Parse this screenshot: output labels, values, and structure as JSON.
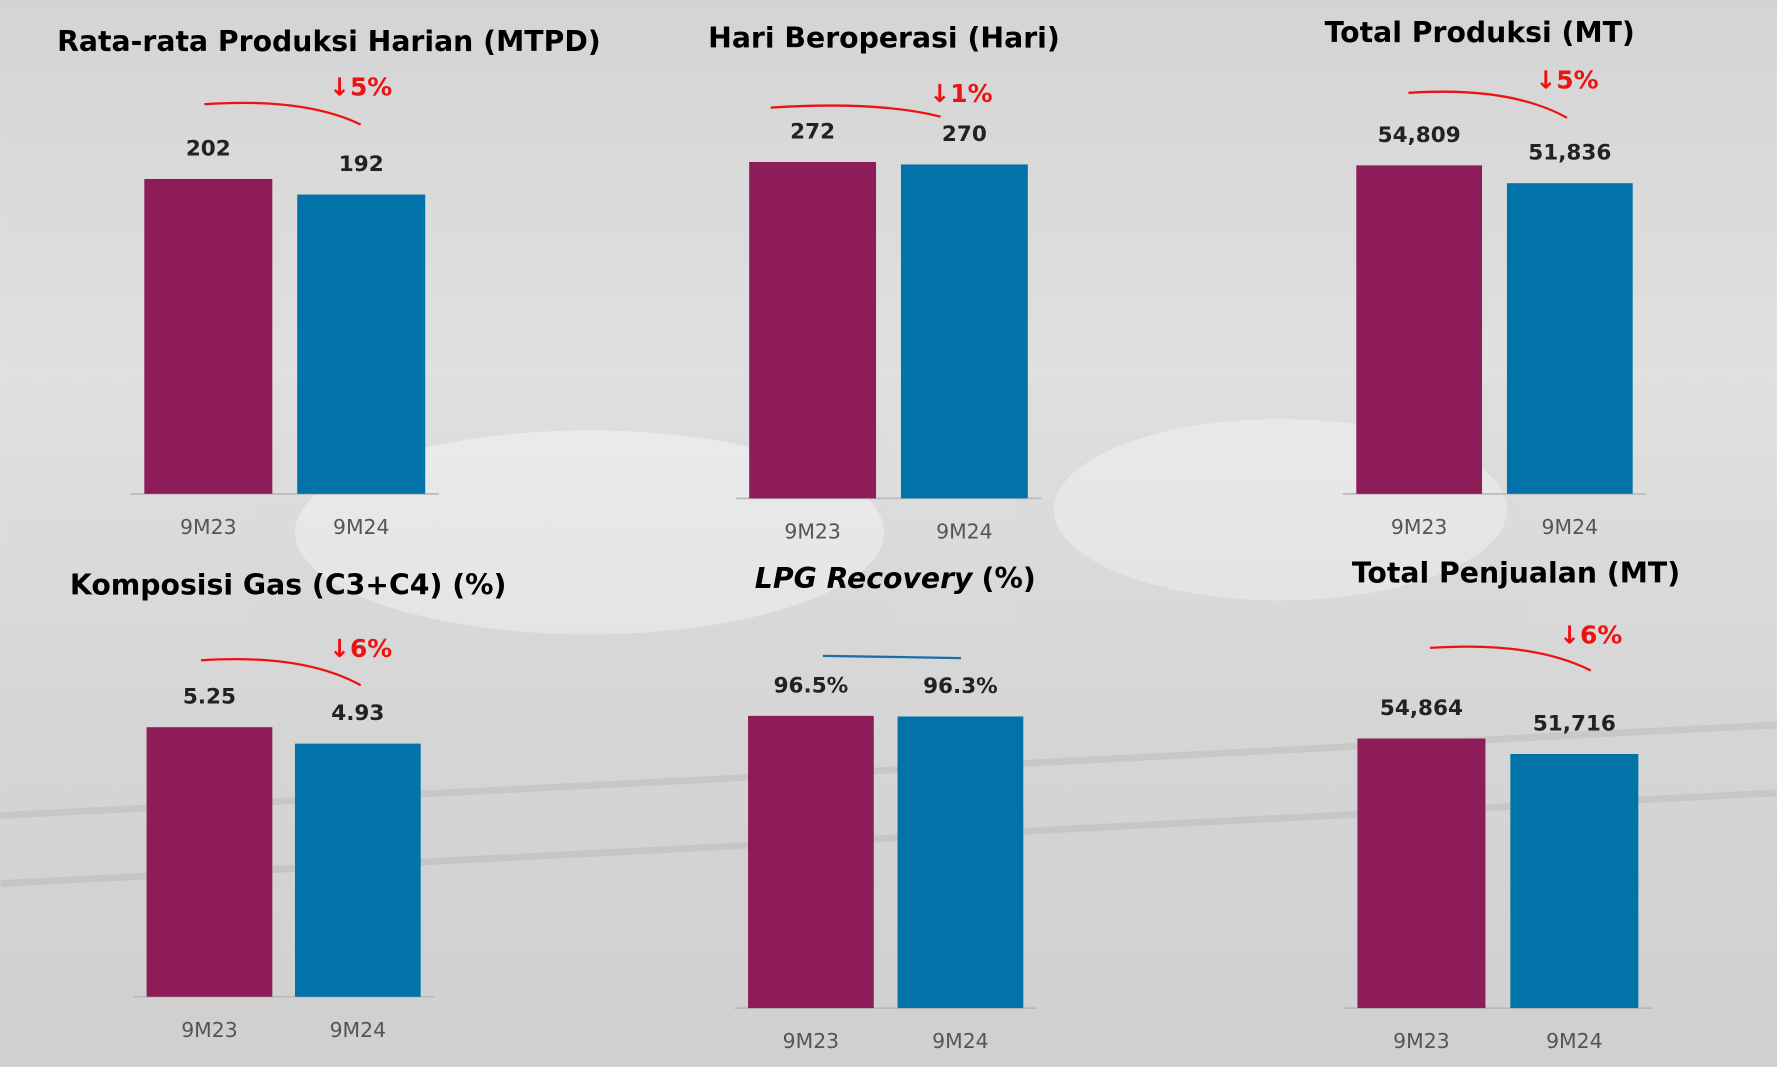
{
  "chart_data": [
    {
      "type": "bar",
      "title": "Rata-rata Produksi Harian (MTPD)",
      "categories": [
        "9M23",
        "9M24"
      ],
      "values": [
        202,
        192
      ],
      "colors": [
        "#8e1c59",
        "#0173a8"
      ],
      "change": "↓5%",
      "change_color": "#ee1111"
    },
    {
      "type": "bar",
      "title": "Hari Beroperasi (Hari)",
      "categories": [
        "9M23",
        "9M24"
      ],
      "values": [
        272,
        270
      ],
      "colors": [
        "#8e1c59",
        "#0173a8"
      ],
      "change": "↓1%",
      "change_color": "#ee1111"
    },
    {
      "type": "bar",
      "title": "Total Produksi (MT)",
      "categories": [
        "9M23",
        "9M24"
      ],
      "values": [
        54809,
        51836
      ],
      "value_labels": [
        "54,809",
        "51,836"
      ],
      "colors": [
        "#8e1c59",
        "#0173a8"
      ],
      "change": "↓5%",
      "change_color": "#ee1111"
    },
    {
      "type": "bar",
      "title": "Komposisi Gas (C3+C4) (%)",
      "categories": [
        "9M23",
        "9M24"
      ],
      "values": [
        5.25,
        4.93
      ],
      "colors": [
        "#8e1c59",
        "#0173a8"
      ],
      "change": "↓6%",
      "change_color": "#ee1111"
    },
    {
      "type": "bar",
      "title_italic": "LPG Recovery",
      "title": "(%)",
      "categories": [
        "9M23",
        "9M24"
      ],
      "values": [
        96.5,
        96.3
      ],
      "value_labels": [
        "96.5%",
        "96.3%"
      ],
      "colors": [
        "#8e1c59",
        "#0173a8"
      ],
      "change_color": "#1a6fa8"
    },
    {
      "type": "bar",
      "title": "Total Penjualan (MT)",
      "categories": [
        "9M23",
        "9M24"
      ],
      "values": [
        54864,
        51716
      ],
      "value_labels": [
        "54,864",
        "51,716"
      ],
      "colors": [
        "#8e1c59",
        "#0173a8"
      ],
      "change": "↓6%",
      "change_color": "#ee1111"
    }
  ]
}
